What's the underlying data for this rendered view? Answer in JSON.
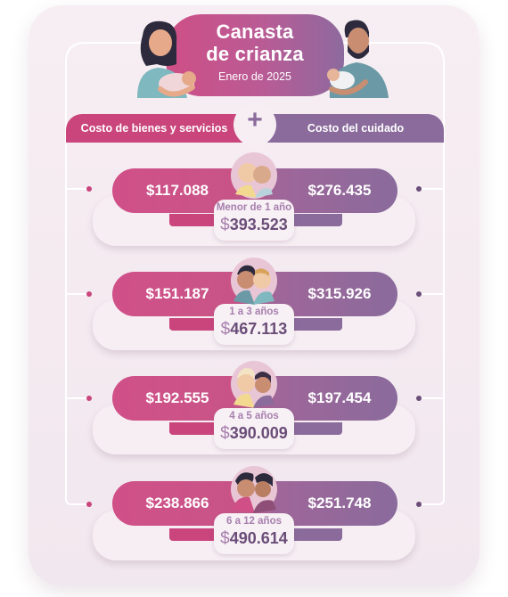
{
  "header": {
    "title_line1": "Canasta",
    "title_line2": "de crianza",
    "subtitle": "Enero de 2025"
  },
  "categories": {
    "left": "Costo de bienes y servicios",
    "plus": "+",
    "right": "Costo del cuidado"
  },
  "colors": {
    "bienes": "#c9457c",
    "cuidado": "#8a6b9c",
    "total_text": "#6a4d78",
    "age_text": "#a77fae"
  },
  "rows": [
    {
      "age": "Menor de 1 año",
      "bienes": "$117.088",
      "cuidado": "$276.435",
      "total_symbol": "$",
      "total": "393.523",
      "avatar": "baby-icon"
    },
    {
      "age": "1 a 3 años",
      "bienes": "$151.187",
      "cuidado": "$315.926",
      "total_symbol": "$",
      "total": "467.113",
      "avatar": "toddler-icon"
    },
    {
      "age": "4 a 5 años",
      "bienes": "$192.555",
      "cuidado": "$197.454",
      "total_symbol": "$",
      "total": "390.009",
      "avatar": "child-icon"
    },
    {
      "age": "6 a 12 años",
      "bienes": "$238.866",
      "cuidado": "$251.748",
      "total_symbol": "$",
      "total": "490.614",
      "avatar": "preteen-icon"
    }
  ]
}
